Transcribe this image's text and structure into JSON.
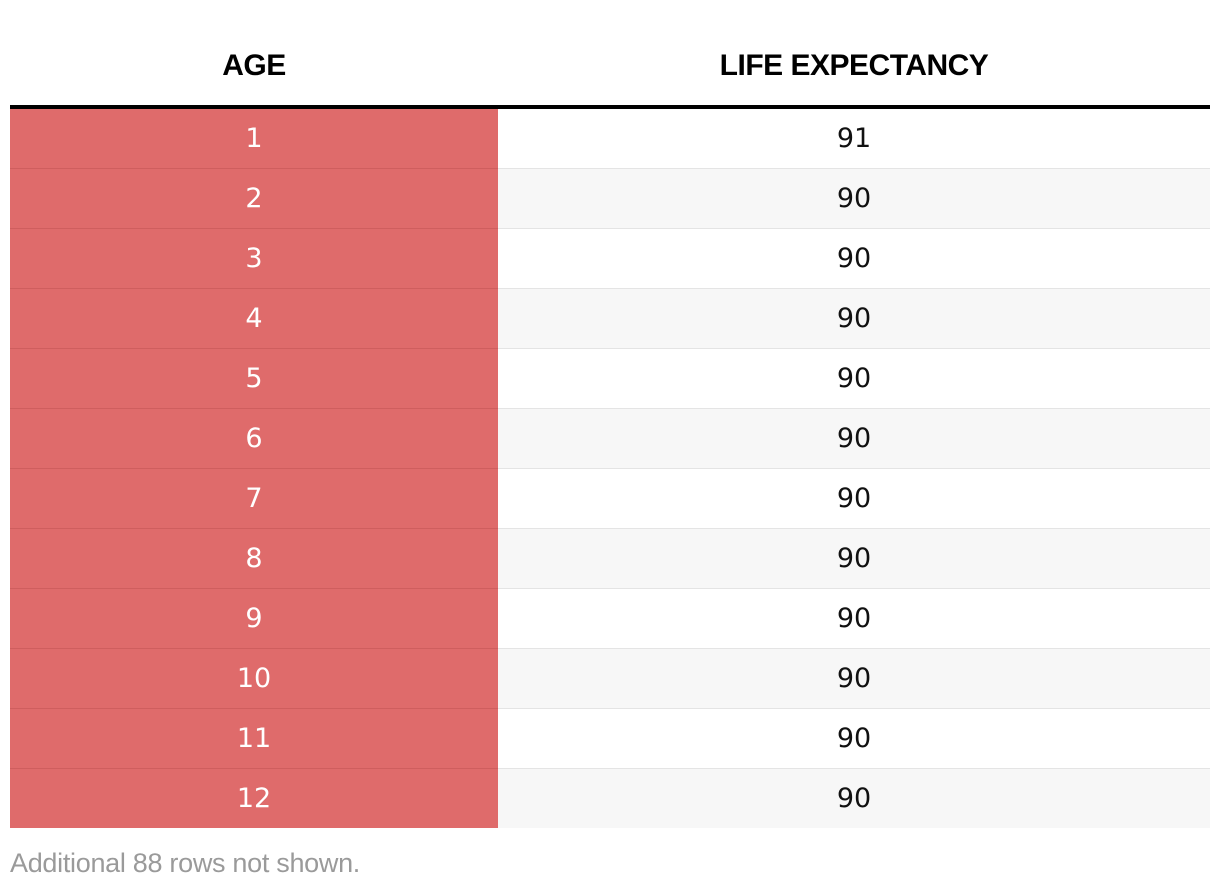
{
  "chart_data": {
    "type": "table",
    "columns": [
      "AGE",
      "LIFE EXPECTANCY"
    ],
    "rows": [
      {
        "age": "1",
        "life": "91"
      },
      {
        "age": "2",
        "life": "90"
      },
      {
        "age": "3",
        "life": "90"
      },
      {
        "age": "4",
        "life": "90"
      },
      {
        "age": "5",
        "life": "90"
      },
      {
        "age": "6",
        "life": "90"
      },
      {
        "age": "7",
        "life": "90"
      },
      {
        "age": "8",
        "life": "90"
      },
      {
        "age": "9",
        "life": "90"
      },
      {
        "age": "10",
        "life": "90"
      },
      {
        "age": "11",
        "life": "90"
      },
      {
        "age": "12",
        "life": "90"
      }
    ],
    "footnote": "Additional 88 rows not shown."
  },
  "colors": {
    "age_column_bg": "#df6b6b",
    "row_alt_bg": "#f7f7f7",
    "row_bg": "#ffffff"
  }
}
